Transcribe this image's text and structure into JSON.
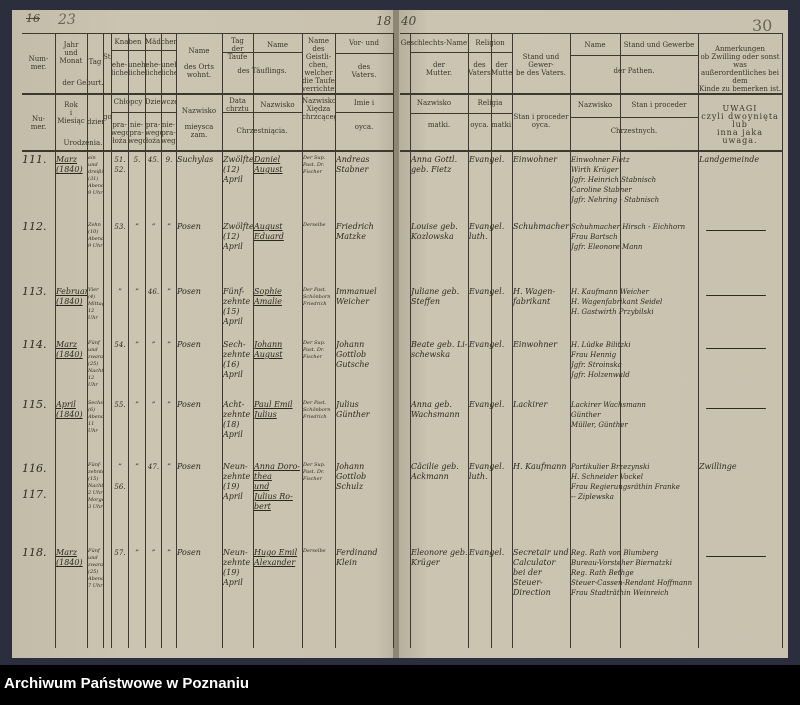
{
  "page_marks": {
    "left_corner": "16",
    "left_folio": "23",
    "year_left": "18",
    "year_right": "40",
    "right_folio": "30"
  },
  "header_de": {
    "nr": "Num-\nmer.",
    "birth_ym": "Jahr\nund\nMonat",
    "day": "Tag",
    "hour": "Stunde",
    "birth": "der Geburt.",
    "boys": "Knaben",
    "girls": "Mädchen",
    "legit": "ehe-\nliche",
    "illegit": "unehe-\nliche",
    "place": "Name\n\ndes Orts\nwohnt.",
    "bapt_day": "Tag\nder Taufe",
    "name": "Name",
    "child": "des Täuflings.",
    "clergy": "Name\ndes Geistli-\nchen,\nwelcher\ndie Taufe\nverrichtet.",
    "father_top": "Vor- und",
    "father": "des\nVaters.",
    "mother_top": "Geschlechts-Name",
    "mother": "der\nMutter.",
    "religion": "Religion",
    "rel_father": "des\nVaters",
    "rel_mother": "der\nMutter",
    "occupation": "Stand und Gewer-\nbe des Vaters.",
    "gp_name": "Name",
    "gp_status": "Stand und Gewerbe",
    "godparents": "der Pathen.",
    "remarks": "Anmerkungen\nob Zwilling oder sonst was\naußerordentliches bei dem\nKinde zu bemerken ist."
  },
  "header_pl": {
    "nr": "Nu-\nmer.",
    "birth_ym": "Rok\ni\nMiesiąc",
    "day": "dzień",
    "hour": "godzina",
    "birth": "Urodzenia.",
    "boys": "Chłopcy",
    "girls": "Dziewczęta",
    "legit": "pra-\nwego\nłoża",
    "illegit": "nie-\npra-\nwego",
    "place": "Nazwisko\n\nmieysca\nzam.",
    "bapt_day": "Data\nchrztu",
    "name": "Nazwisko",
    "child": "Chrzestniącia.",
    "clergy": "Nazwisko\nXiędza\nchrzcącego.",
    "father_top": "Imie i",
    "father": "oyca.",
    "mother_top": "Nazwisko",
    "mother": "matki.",
    "religion": "Religia",
    "rel_father": "oyca.",
    "rel_mother": "matki.",
    "occupation": "Stan i proceder\noyca.",
    "gp_name": "Nazwisko",
    "gp_status": "Stan i proceder",
    "godparents": "Chrzestnych.",
    "remarks": "UWAGI\nczyli dwoynięta lub\ninna jaka uwaga."
  },
  "rows": [
    {
      "nr": "111.",
      "month": "Marz\n(1840)",
      "day": "ein und\ndreißig\n(31)\nAbends\n9 Uhr",
      "b1": "51.\n52.",
      "b2": "5.",
      "g1": "45.",
      "g2": "9.",
      "place": "Suchylas",
      "bapt": "Zwölfte\n(12)\nApril",
      "child": "Daniel\nAugust",
      "clergy": "Der Sup.\nPast. Dr.\nFischer",
      "father": "Andreas\nStabner",
      "mother": "Anna Gottl.\ngeb. Fietz",
      "religion": "Evangel.",
      "occupation": "Einwohner",
      "godparents": "Einwohner Fietz\nWirth Krüger\nJgfr. Heinrich Stabnisch\nCaroline Stabner\nJgfr. Nehring - Stabnisch",
      "remarks": "Landgemeinde"
    },
    {
      "nr": "112.",
      "month": "",
      "day": "Zehn\n(10)\nAbends\n9 Uhr",
      "b1": "53.",
      "b2": "”",
      "g1": "”",
      "g2": "”",
      "place": "Posen",
      "bapt": "Zwölfte\n(12)\nApril",
      "child": "August\nEduard",
      "clergy": "Derselbe",
      "father": "Friedrich\nMatzke",
      "mother": "Louise geb.\nKozlowska",
      "religion": "Evangel. luth.",
      "occupation": "Schuhmacher",
      "godparents": "Schuhmacher Hirsch - Eichhorn\nFrau Bartsch\nJgfr. Eleonore Mann",
      "remarks": ""
    },
    {
      "nr": "113.",
      "month": "Februar\n(1840)",
      "day": "Vier\n(4)\nMittags\n12 Uhr",
      "b1": "”",
      "b2": "”",
      "g1": "46.",
      "g2": "”",
      "place": "Posen",
      "bapt": "Fünf-\nzehnte\n(15)\nApril",
      "child": "Sophie\nAmalie",
      "clergy": "Der Past.\nSchönborn\nFriedrich",
      "father": "Immanuel\nWeicher",
      "mother": "Juliane geb.\nSteffen",
      "religion": "Evangel.",
      "occupation": "H. Wagen-\nfabrikant",
      "godparents": "H. Kaufmann Weicher\nH. Wagenfabrikant Seidel\nH. Gastwirth Przybilski",
      "remarks": ""
    },
    {
      "nr": "114.",
      "month": "Marz\n(1840)",
      "day": "Fünf und\nzwanzig\n(25)\nNachts\n12 Uhr",
      "b1": "54.",
      "b2": "”",
      "g1": "”",
      "g2": "”",
      "place": "Posen",
      "bapt": "Sech-\nzehnte\n(16)\nApril",
      "child": "Johann\nAugust",
      "clergy": "Der Sup.\nPast. Dr.\nFischer",
      "father": "Johann Gottlob\nGutsche",
      "mother": "Beate geb. Li-\nschewska",
      "religion": "Evangel.",
      "occupation": "Einwohner",
      "godparents": "H. Lüdke Bilitzki\nFrau Hennig\nJgfr. Stroinska\nJgfr. Holzenwald",
      "remarks": ""
    },
    {
      "nr": "115.",
      "month": "April\n(1840)",
      "day": "Sechs\n(6)\nAbends\n11 Uhr",
      "b1": "55.",
      "b2": "”",
      "g1": "”",
      "g2": "”",
      "place": "Posen",
      "bapt": "Acht-\nzehnte\n(18)\nApril",
      "child": "Paul Emil\nJulius",
      "clergy": "Der Past.\nSchönborn\nFriedrich",
      "father": "Julius\nGünther",
      "mother": "Anna geb.\nWachsmann",
      "religion": "Evangel.",
      "occupation": "Lackirer",
      "godparents": "Lackirer Wachsmann\nGünther\nMüller, Günther",
      "remarks": ""
    },
    {
      "nr": "116.\n\n117.",
      "month": "",
      "day": "Fünf-\nzehnte\n(15)\nNachts\n2 Uhr\nMorgens\n3 Uhr",
      "b1": "”\n\n56.",
      "b2": "”",
      "g1": "47.",
      "g2": "”",
      "place": "Posen",
      "bapt": "Neun-\nzehnte\n(19)\nApril",
      "child": "Anna Doro-\nthea\nund\nJulius Ro-\nbert",
      "clergy": "Der Sup.\nPast. Dr.\nFischer",
      "father": "Johann Gottlob\nSchulz",
      "mother": "Cäcilie geb.\nAckmann",
      "religion": "Evangel. luth.",
      "occupation": "H. Kaufmann",
      "godparents": "Partikulier Brzezynski\nH. Schneider Vockel\nFrau Regierungsräthin Franke\n-- Ziplewska",
      "remarks": "Zwillinge"
    },
    {
      "nr": "118.",
      "month": "Marz\n(1840)",
      "day": "Fünf\nund\nzwanzig\n(25)\nAbends\n7 Uhr",
      "b1": "57.",
      "b2": "”",
      "g1": "”",
      "g2": "”",
      "place": "Posen",
      "bapt": "Neun-\nzehnte\n(19)\nApril",
      "child": "Hugo Emil\nAlexander",
      "clergy": "Derselbe",
      "father": "Ferdinand\nKlein",
      "mother": "Eleonore geb.\nKrüger",
      "religion": "Evangel.",
      "occupation": "Secretair und\nCalculator\nbei der Steuer-\nDirection",
      "godparents": "Reg. Rath von Blumberg\nBureau-Vorsteher Biernatzki\nReg. Rath Bethge\nSteuer-Cassen-Rendant Hoffmann\nFrau Stadträthin Weinreich",
      "remarks": ""
    }
  ],
  "footer": {
    "archive": "Archiwum Państwowe w Poznaniu"
  },
  "colors": {
    "background": "#2b2f3d",
    "paper": "#c8c1ae",
    "ink": "#2e2822",
    "footer": "#000000"
  }
}
